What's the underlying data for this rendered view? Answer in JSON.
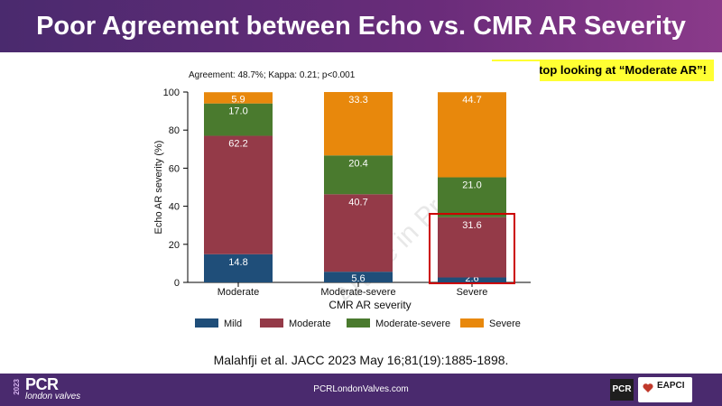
{
  "header": {
    "title": "Poor Agreement between Echo vs. CMR AR Severity"
  },
  "callout": {
    "text": "Don’t stop looking at “Moderate AR”!"
  },
  "chart_data": {
    "type": "bar",
    "stacked": true,
    "annotation": "Agreement: 48.7%; Kappa: 0.21; p<0.001",
    "xlabel": "CMR AR severity",
    "ylabel": "Echo AR severity (%)",
    "ylim": [
      0,
      100
    ],
    "yticks": [
      "0",
      "20",
      "40",
      "60",
      "80",
      "100"
    ],
    "categories": [
      "Moderate",
      "Moderate-severe",
      "Severe"
    ],
    "series": [
      {
        "name": "Mild",
        "color": "#1f4e79",
        "values": [
          14.8,
          5.6,
          2.6
        ],
        "labels": [
          "14.8",
          "5.6",
          "2.6"
        ]
      },
      {
        "name": "Moderate",
        "color": "#943a48",
        "values": [
          62.2,
          40.7,
          31.6
        ],
        "labels": [
          "62.2",
          "40.7",
          "31.6"
        ]
      },
      {
        "name": "Moderate-severe",
        "color": "#4a7a2e",
        "values": [
          17.0,
          20.4,
          21.0
        ],
        "labels": [
          "17.0",
          "20.4",
          "21.0"
        ]
      },
      {
        "name": "Severe",
        "color": "#e8880c",
        "values": [
          5.9,
          33.3,
          44.7
        ],
        "labels": [
          "5.9",
          "33.3",
          "44.7"
        ]
      }
    ],
    "highlight": {
      "category": "Severe",
      "color": "#cc0000"
    },
    "legend_position": "bottom",
    "grid": false,
    "watermark": "Article in Press"
  },
  "citation": "Malahfji et al. JACC 2023 May 16;81(19):1885-1898.",
  "footer": {
    "url": "PCRLondonValves.com",
    "logo_year": "2023",
    "logo_main": "PCR",
    "logo_sub": "london valves",
    "logo_pcr": "PCR",
    "logo_eapci": "EAPCI"
  }
}
